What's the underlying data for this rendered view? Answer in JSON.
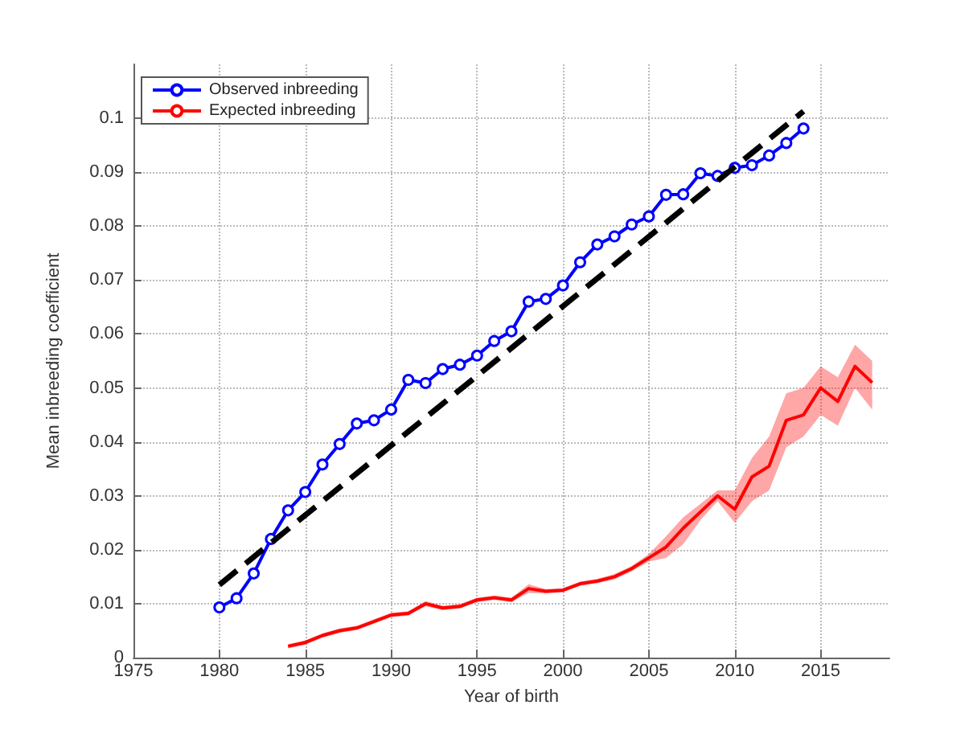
{
  "chart_data": {
    "type": "line",
    "xlabel": "Year of birth",
    "ylabel": "Mean inbreeding coefficient",
    "xlim": [
      1975,
      2019
    ],
    "xticks": [
      1975,
      1980,
      1985,
      1990,
      1995,
      2000,
      2005,
      2010,
      2015
    ],
    "ylim": [
      0,
      0.11
    ],
    "yticks": [
      0,
      0.01,
      0.02,
      0.03,
      0.04,
      0.05,
      0.06,
      0.07,
      0.08,
      0.09,
      0.1
    ],
    "grid": true,
    "legend": "top left",
    "series": [
      {
        "name": "Observed inbreeding",
        "color": "#0000ff",
        "marker": "circle",
        "line_style": "solid",
        "x": [
          1980,
          1981,
          1982,
          1983,
          1984,
          1985,
          1986,
          1987,
          1988,
          1989,
          1990,
          1991,
          1992,
          1993,
          1994,
          1995,
          1996,
          1997,
          1998,
          1999,
          2000,
          2001,
          2002,
          2003,
          2004,
          2005,
          2006,
          2007,
          2008,
          2009,
          2010,
          2011,
          2012,
          2013,
          2014
        ],
        "values": [
          0.0093,
          0.011,
          0.0156,
          0.022,
          0.0273,
          0.0307,
          0.0358,
          0.0396,
          0.0434,
          0.044,
          0.046,
          0.0515,
          0.0509,
          0.0535,
          0.0543,
          0.056,
          0.0587,
          0.0605,
          0.066,
          0.0665,
          0.069,
          0.0733,
          0.0766,
          0.0781,
          0.0803,
          0.0818,
          0.0858,
          0.0859,
          0.0898,
          0.0893,
          0.0908,
          0.0913,
          0.0931,
          0.0954,
          0.0981
        ]
      },
      {
        "name": "Expected inbreeding",
        "color": "#ff0000",
        "marker": "none",
        "line_style": "solid",
        "x": [
          1984,
          1985,
          1986,
          1987,
          1988,
          1989,
          1990,
          1991,
          1992,
          1993,
          1994,
          1995,
          1996,
          1997,
          1998,
          1999,
          2000,
          2001,
          2002,
          2003,
          2004,
          2005,
          2006,
          2007,
          2008,
          2009,
          2010,
          2011,
          2012,
          2013,
          2014,
          2015,
          2016,
          2017,
          2018
        ],
        "values": [
          0.0021,
          0.0028,
          0.0041,
          0.005,
          0.0055,
          0.0067,
          0.0079,
          0.0082,
          0.01,
          0.0092,
          0.0095,
          0.0107,
          0.0111,
          0.0107,
          0.0128,
          0.0123,
          0.0125,
          0.0137,
          0.0142,
          0.015,
          0.0165,
          0.0185,
          0.0205,
          0.024,
          0.027,
          0.03,
          0.0275,
          0.0335,
          0.0355,
          0.044,
          0.045,
          0.05,
          0.0475,
          0.054,
          0.051
        ],
        "lower": [
          0.0017,
          0.0024,
          0.0037,
          0.0046,
          0.0051,
          0.0063,
          0.0075,
          0.0078,
          0.0095,
          0.0088,
          0.0091,
          0.0103,
          0.0107,
          0.0103,
          0.012,
          0.0119,
          0.0121,
          0.0133,
          0.0138,
          0.0145,
          0.016,
          0.0178,
          0.0185,
          0.021,
          0.0255,
          0.029,
          0.025,
          0.029,
          0.031,
          0.039,
          0.041,
          0.045,
          0.043,
          0.05,
          0.046
        ],
        "upper": [
          0.0025,
          0.0032,
          0.0045,
          0.0054,
          0.0059,
          0.0071,
          0.0083,
          0.0086,
          0.0105,
          0.0096,
          0.0099,
          0.0111,
          0.0115,
          0.0111,
          0.0136,
          0.0127,
          0.0129,
          0.0141,
          0.0146,
          0.0155,
          0.017,
          0.0192,
          0.0225,
          0.026,
          0.0285,
          0.031,
          0.031,
          0.037,
          0.041,
          0.049,
          0.05,
          0.054,
          0.052,
          0.058,
          0.055
        ]
      },
      {
        "color": "#000000",
        "marker": "none",
        "line_style": "dashed",
        "x": [
          1980,
          2014
        ],
        "values": [
          0.0135,
          0.1013
        ]
      }
    ]
  }
}
